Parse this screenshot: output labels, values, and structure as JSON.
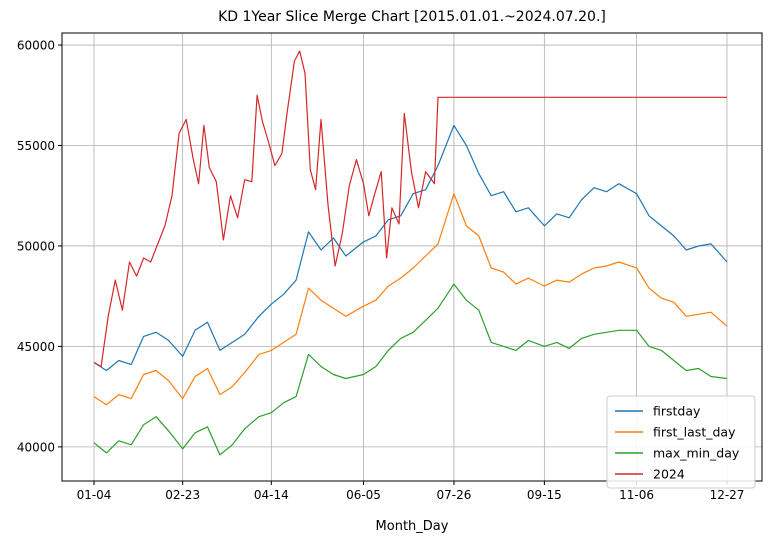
{
  "chart_data": {
    "type": "line",
    "title": "KD 1Year Slice Merge Chart [2015.01.01.~2024.07.20.]",
    "xlabel": "Month_Day",
    "ylabel": "",
    "x_ticks": [
      "01-04",
      "02-23",
      "04-14",
      "06-05",
      "07-26",
      "09-15",
      "11-06",
      "12-27"
    ],
    "y_ticks": [
      40000,
      45000,
      50000,
      55000,
      60000
    ],
    "ylim": [
      38300,
      60600
    ],
    "xlim": [
      "01-04",
      "12-27"
    ],
    "grid": true,
    "legend_position": "lower-right",
    "series": [
      {
        "name": "firstday",
        "color": "#1f77b4",
        "points": [
          [
            "01-04",
            44200
          ],
          [
            "01-11",
            43800
          ],
          [
            "01-18",
            44300
          ],
          [
            "01-25",
            44100
          ],
          [
            "02-01",
            45500
          ],
          [
            "02-08",
            45700
          ],
          [
            "02-15",
            45300
          ],
          [
            "02-23",
            44500
          ],
          [
            "03-02",
            45800
          ],
          [
            "03-09",
            46200
          ],
          [
            "03-16",
            44800
          ],
          [
            "03-23",
            45200
          ],
          [
            "03-30",
            45600
          ],
          [
            "04-07",
            46500
          ],
          [
            "04-14",
            47100
          ],
          [
            "04-21",
            47600
          ],
          [
            "04-28",
            48300
          ],
          [
            "05-05",
            50700
          ],
          [
            "05-12",
            49800
          ],
          [
            "05-19",
            50400
          ],
          [
            "05-26",
            49500
          ],
          [
            "06-05",
            50200
          ],
          [
            "06-12",
            50500
          ],
          [
            "06-19",
            51300
          ],
          [
            "06-26",
            51500
          ],
          [
            "07-03",
            52600
          ],
          [
            "07-10",
            52800
          ],
          [
            "07-17",
            54000
          ],
          [
            "07-26",
            56000
          ],
          [
            "08-02",
            55000
          ],
          [
            "08-09",
            53600
          ],
          [
            "08-16",
            52500
          ],
          [
            "08-23",
            52700
          ],
          [
            "08-30",
            51700
          ],
          [
            "09-06",
            51900
          ],
          [
            "09-15",
            51000
          ],
          [
            "09-22",
            51600
          ],
          [
            "09-29",
            51400
          ],
          [
            "10-06",
            52300
          ],
          [
            "10-13",
            52900
          ],
          [
            "10-20",
            52700
          ],
          [
            "10-27",
            53100
          ],
          [
            "11-06",
            52600
          ],
          [
            "11-13",
            51500
          ],
          [
            "11-20",
            51000
          ],
          [
            "11-27",
            50500
          ],
          [
            "12-04",
            49800
          ],
          [
            "12-11",
            50000
          ],
          [
            "12-18",
            50100
          ],
          [
            "12-27",
            49200
          ]
        ]
      },
      {
        "name": "first_last_day",
        "color": "#ff7f0e",
        "points": [
          [
            "01-04",
            42500
          ],
          [
            "01-11",
            42100
          ],
          [
            "01-18",
            42600
          ],
          [
            "01-25",
            42400
          ],
          [
            "02-01",
            43600
          ],
          [
            "02-08",
            43800
          ],
          [
            "02-15",
            43300
          ],
          [
            "02-23",
            42400
          ],
          [
            "03-02",
            43500
          ],
          [
            "03-09",
            43900
          ],
          [
            "03-16",
            42600
          ],
          [
            "03-23",
            43000
          ],
          [
            "03-30",
            43700
          ],
          [
            "04-07",
            44600
          ],
          [
            "04-14",
            44800
          ],
          [
            "04-21",
            45200
          ],
          [
            "04-28",
            45600
          ],
          [
            "05-05",
            47900
          ],
          [
            "05-12",
            47300
          ],
          [
            "05-19",
            46900
          ],
          [
            "05-26",
            46500
          ],
          [
            "06-05",
            47000
          ],
          [
            "06-12",
            47300
          ],
          [
            "06-19",
            48000
          ],
          [
            "06-26",
            48400
          ],
          [
            "07-03",
            48900
          ],
          [
            "07-10",
            49500
          ],
          [
            "07-17",
            50100
          ],
          [
            "07-26",
            52600
          ],
          [
            "08-02",
            51000
          ],
          [
            "08-09",
            50500
          ],
          [
            "08-16",
            48900
          ],
          [
            "08-23",
            48700
          ],
          [
            "08-30",
            48100
          ],
          [
            "09-06",
            48400
          ],
          [
            "09-15",
            48000
          ],
          [
            "09-22",
            48300
          ],
          [
            "09-29",
            48200
          ],
          [
            "10-06",
            48600
          ],
          [
            "10-13",
            48900
          ],
          [
            "10-20",
            49000
          ],
          [
            "10-27",
            49200
          ],
          [
            "11-06",
            48900
          ],
          [
            "11-13",
            47900
          ],
          [
            "11-20",
            47400
          ],
          [
            "11-27",
            47200
          ],
          [
            "12-04",
            46500
          ],
          [
            "12-11",
            46600
          ],
          [
            "12-18",
            46700
          ],
          [
            "12-27",
            46000
          ]
        ]
      },
      {
        "name": "max_min_day",
        "color": "#2ca02c",
        "points": [
          [
            "01-04",
            40200
          ],
          [
            "01-11",
            39700
          ],
          [
            "01-18",
            40300
          ],
          [
            "01-25",
            40100
          ],
          [
            "02-01",
            41100
          ],
          [
            "02-08",
            41500
          ],
          [
            "02-15",
            40800
          ],
          [
            "02-23",
            39900
          ],
          [
            "03-02",
            40700
          ],
          [
            "03-09",
            41000
          ],
          [
            "03-16",
            39600
          ],
          [
            "03-23",
            40100
          ],
          [
            "03-30",
            40900
          ],
          [
            "04-07",
            41500
          ],
          [
            "04-14",
            41700
          ],
          [
            "04-21",
            42200
          ],
          [
            "04-28",
            42500
          ],
          [
            "05-05",
            44600
          ],
          [
            "05-12",
            44000
          ],
          [
            "05-19",
            43600
          ],
          [
            "05-26",
            43400
          ],
          [
            "06-05",
            43600
          ],
          [
            "06-12",
            44000
          ],
          [
            "06-19",
            44800
          ],
          [
            "06-26",
            45400
          ],
          [
            "07-03",
            45700
          ],
          [
            "07-10",
            46300
          ],
          [
            "07-17",
            46900
          ],
          [
            "07-26",
            48100
          ],
          [
            "08-02",
            47300
          ],
          [
            "08-09",
            46800
          ],
          [
            "08-16",
            45200
          ],
          [
            "08-23",
            45000
          ],
          [
            "08-30",
            44800
          ],
          [
            "09-06",
            45300
          ],
          [
            "09-15",
            45000
          ],
          [
            "09-22",
            45200
          ],
          [
            "09-29",
            44900
          ],
          [
            "10-06",
            45400
          ],
          [
            "10-13",
            45600
          ],
          [
            "10-20",
            45700
          ],
          [
            "10-27",
            45800
          ],
          [
            "11-06",
            45800
          ],
          [
            "11-13",
            45000
          ],
          [
            "11-20",
            44800
          ],
          [
            "11-27",
            44300
          ],
          [
            "12-04",
            43800
          ],
          [
            "12-11",
            43900
          ],
          [
            "12-18",
            43500
          ],
          [
            "12-27",
            43400
          ]
        ]
      },
      {
        "name": "2024",
        "color": "#d62728",
        "points": [
          [
            "01-04",
            44200
          ],
          [
            "01-08",
            44000
          ],
          [
            "01-12",
            46500
          ],
          [
            "01-16",
            48300
          ],
          [
            "01-20",
            46800
          ],
          [
            "01-24",
            49200
          ],
          [
            "01-28",
            48500
          ],
          [
            "02-01",
            49400
          ],
          [
            "02-05",
            49200
          ],
          [
            "02-09",
            50100
          ],
          [
            "02-13",
            51000
          ],
          [
            "02-17",
            52500
          ],
          [
            "02-21",
            55600
          ],
          [
            "02-25",
            56300
          ],
          [
            "03-01",
            54300
          ],
          [
            "03-04",
            53100
          ],
          [
            "03-07",
            56000
          ],
          [
            "03-10",
            53900
          ],
          [
            "03-14",
            53200
          ],
          [
            "03-18",
            50300
          ],
          [
            "03-22",
            52500
          ],
          [
            "03-26",
            51400
          ],
          [
            "03-30",
            53300
          ],
          [
            "04-03",
            53200
          ],
          [
            "04-06",
            57500
          ],
          [
            "04-09",
            56200
          ],
          [
            "04-12",
            55300
          ],
          [
            "04-16",
            54000
          ],
          [
            "04-20",
            54600
          ],
          [
            "04-23",
            56700
          ],
          [
            "04-27",
            59200
          ],
          [
            "04-30",
            59700
          ],
          [
            "05-03",
            58600
          ],
          [
            "05-06",
            53800
          ],
          [
            "05-09",
            52800
          ],
          [
            "05-12",
            56300
          ],
          [
            "05-16",
            52000
          ],
          [
            "05-20",
            49000
          ],
          [
            "05-24",
            50600
          ],
          [
            "05-28",
            53000
          ],
          [
            "06-01",
            54300
          ],
          [
            "06-05",
            53100
          ],
          [
            "06-08",
            51500
          ],
          [
            "06-11",
            52500
          ],
          [
            "06-15",
            53700
          ],
          [
            "06-18",
            49400
          ],
          [
            "06-21",
            51900
          ],
          [
            "06-25",
            51100
          ],
          [
            "06-28",
            56600
          ],
          [
            "07-02",
            53700
          ],
          [
            "07-06",
            51900
          ],
          [
            "07-10",
            53700
          ],
          [
            "07-15",
            53100
          ],
          [
            "07-17",
            57400
          ],
          [
            "12-27",
            57400
          ]
        ]
      }
    ]
  }
}
